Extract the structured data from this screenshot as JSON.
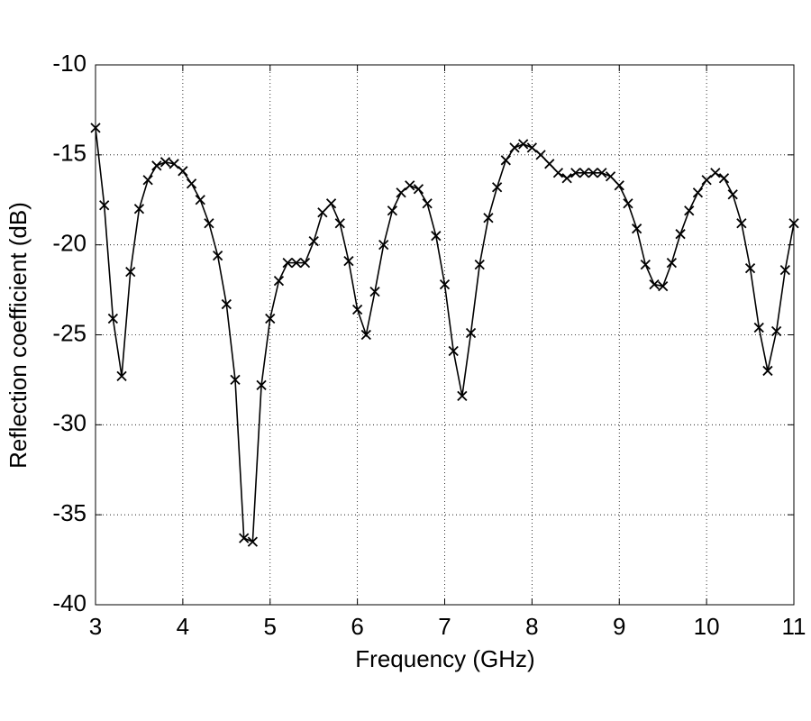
{
  "chart_data": {
    "type": "line",
    "xlabel": "Frequency  (GHz)",
    "ylabel": "Reflection  coefficient  (dB)",
    "xlim": [
      3,
      11
    ],
    "ylim": [
      -40,
      -10
    ],
    "xticks": [
      3,
      4,
      5,
      6,
      7,
      8,
      9,
      10,
      11
    ],
    "yticks": [
      -40,
      -35,
      -30,
      -25,
      -20,
      -15,
      -10
    ],
    "grid": true,
    "x": [
      3.0,
      3.1,
      3.2,
      3.3,
      3.4,
      3.5,
      3.6,
      3.7,
      3.8,
      3.9,
      4.0,
      4.1,
      4.2,
      4.3,
      4.4,
      4.5,
      4.6,
      4.7,
      4.8,
      4.9,
      5.0,
      5.1,
      5.2,
      5.3,
      5.4,
      5.5,
      5.6,
      5.7,
      5.8,
      5.9,
      6.0,
      6.1,
      6.2,
      6.3,
      6.4,
      6.5,
      6.6,
      6.7,
      6.8,
      6.9,
      7.0,
      7.1,
      7.2,
      7.3,
      7.4,
      7.5,
      7.6,
      7.7,
      7.8,
      7.9,
      8.0,
      8.1,
      8.2,
      8.3,
      8.4,
      8.5,
      8.6,
      8.7,
      8.8,
      8.9,
      9.0,
      9.1,
      9.2,
      9.3,
      9.4,
      9.5,
      9.6,
      9.7,
      9.8,
      9.9,
      10.0,
      10.1,
      10.2,
      10.3,
      10.4,
      10.5,
      10.6,
      10.7,
      10.8,
      10.9,
      11.0
    ],
    "series": [
      {
        "color": "#000000",
        "marker": "x",
        "values": [
          -13.5,
          -17.8,
          -24.1,
          -27.3,
          -21.5,
          -18.0,
          -16.4,
          -15.6,
          -15.4,
          -15.5,
          -15.9,
          -16.6,
          -17.5,
          -18.8,
          -20.6,
          -23.3,
          -27.5,
          -36.3,
          -36.5,
          -27.8,
          -24.1,
          -22.0,
          -21.0,
          -21.0,
          -21.0,
          -19.8,
          -18.2,
          -17.7,
          -18.8,
          -20.9,
          -23.6,
          -25.0,
          -22.6,
          -20.0,
          -18.1,
          -17.1,
          -16.7,
          -16.9,
          -17.7,
          -19.5,
          -22.2,
          -25.9,
          -28.4,
          -24.9,
          -21.1,
          -18.5,
          -16.8,
          -15.3,
          -14.6,
          -14.4,
          -14.6,
          -15.0,
          -15.5,
          -16.0,
          -16.3,
          -16.0,
          -16.0,
          -16.0,
          -16.0,
          -16.2,
          -16.7,
          -17.7,
          -19.1,
          -21.1,
          -22.2,
          -22.3,
          -21.0,
          -19.4,
          -18.1,
          -17.1,
          -16.4,
          -16.0,
          -16.3,
          -17.2,
          -18.8,
          -21.3,
          -24.6,
          -27.0,
          -24.8,
          -21.4,
          -18.8
        ]
      }
    ]
  }
}
